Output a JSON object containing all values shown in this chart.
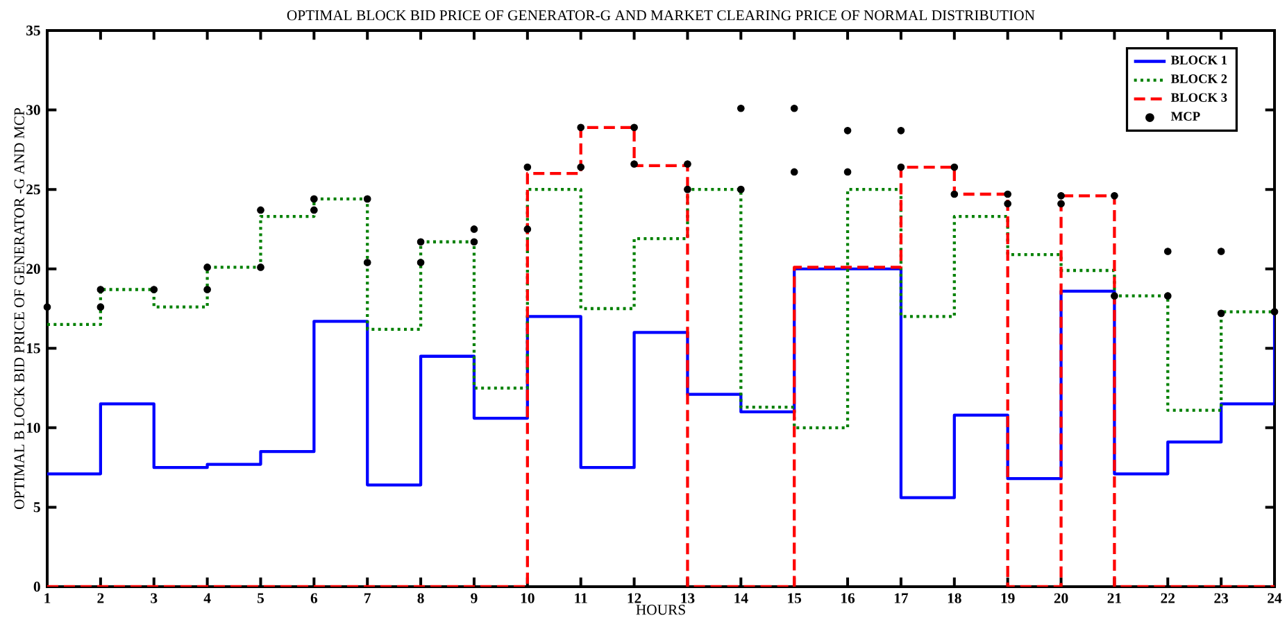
{
  "chart_data": {
    "type": "step",
    "title": "OPTIMAL BLOCK BID PRICE OF GENERATOR-G AND MARKET CLEARING PRICE OF NORMAL DISTRIBUTION",
    "xlabel": "HOURS",
    "ylabel": "OPTIMAL B LOCK BID PRICE OF GENERATOR -G AND MCP",
    "x": [
      1,
      2,
      3,
      4,
      5,
      6,
      7,
      8,
      9,
      10,
      11,
      12,
      13,
      14,
      15,
      16,
      17,
      18,
      19,
      20,
      21,
      22,
      23,
      24
    ],
    "series": [
      {
        "name": "BLOCK 1",
        "marker": "none",
        "color": "#0000ff",
        "line_style": "solid",
        "values": [
          7.1,
          11.5,
          7.5,
          7.7,
          8.5,
          16.7,
          6.4,
          14.5,
          10.6,
          17.0,
          7.5,
          16.0,
          12.1,
          11.0,
          20.0,
          20.0,
          5.6,
          10.8,
          6.8,
          18.6,
          7.1,
          9.1,
          11.5,
          17.3
        ]
      },
      {
        "name": "BLOCK 2",
        "marker": "none",
        "color": "#008000",
        "line_style": "dotted",
        "values": [
          16.5,
          18.7,
          17.6,
          20.1,
          23.3,
          24.4,
          16.2,
          21.7,
          12.5,
          25.0,
          17.5,
          21.9,
          25.0,
          11.3,
          10.0,
          25.0,
          17.0,
          23.3,
          20.9,
          19.9,
          18.3,
          11.1,
          17.3,
          17.3
        ]
      },
      {
        "name": "BLOCK 3",
        "marker": "none",
        "color": "#ff0000",
        "line_style": "dashed",
        "values": [
          0,
          0,
          0,
          0,
          0,
          0,
          0,
          0,
          0,
          26.0,
          28.9,
          26.5,
          0,
          0,
          20.1,
          20.1,
          26.4,
          24.7,
          0,
          24.6,
          0,
          0,
          0,
          0
        ]
      },
      {
        "name": "MCP",
        "type": "scatter",
        "color": "#000000",
        "x": [
          1,
          2,
          2,
          3,
          4,
          4,
          5,
          5,
          6,
          6,
          7,
          7,
          8,
          8,
          9,
          9,
          10,
          10,
          11,
          11,
          12,
          12,
          13,
          13,
          14,
          14,
          15,
          15,
          16,
          16,
          17,
          17,
          18,
          18,
          19,
          19,
          20,
          20,
          21,
          21,
          22,
          22,
          23,
          23,
          24
        ],
        "values": [
          17.6,
          18.7,
          17.6,
          18.7,
          20.1,
          18.7,
          23.7,
          20.1,
          24.4,
          23.7,
          24.4,
          20.4,
          21.7,
          20.4,
          22.5,
          21.7,
          26.4,
          22.5,
          28.9,
          26.4,
          28.9,
          26.6,
          26.6,
          25.0,
          30.1,
          25.0,
          30.1,
          26.1,
          28.7,
          26.1,
          28.7,
          26.4,
          26.4,
          24.7,
          24.7,
          24.1,
          24.6,
          24.1,
          24.6,
          18.3,
          21.1,
          18.3,
          21.1,
          17.2,
          17.3
        ]
      }
    ],
    "xlim": [
      1,
      24
    ],
    "ylim": [
      0,
      35
    ],
    "xticks": [
      1,
      2,
      3,
      4,
      5,
      6,
      7,
      8,
      9,
      10,
      11,
      12,
      13,
      14,
      15,
      16,
      17,
      18,
      19,
      20,
      21,
      22,
      23,
      24
    ],
    "yticks": [
      0,
      5,
      10,
      15,
      20,
      25,
      30,
      35
    ],
    "grid": false,
    "legend": "top right",
    "marker": "circle"
  }
}
